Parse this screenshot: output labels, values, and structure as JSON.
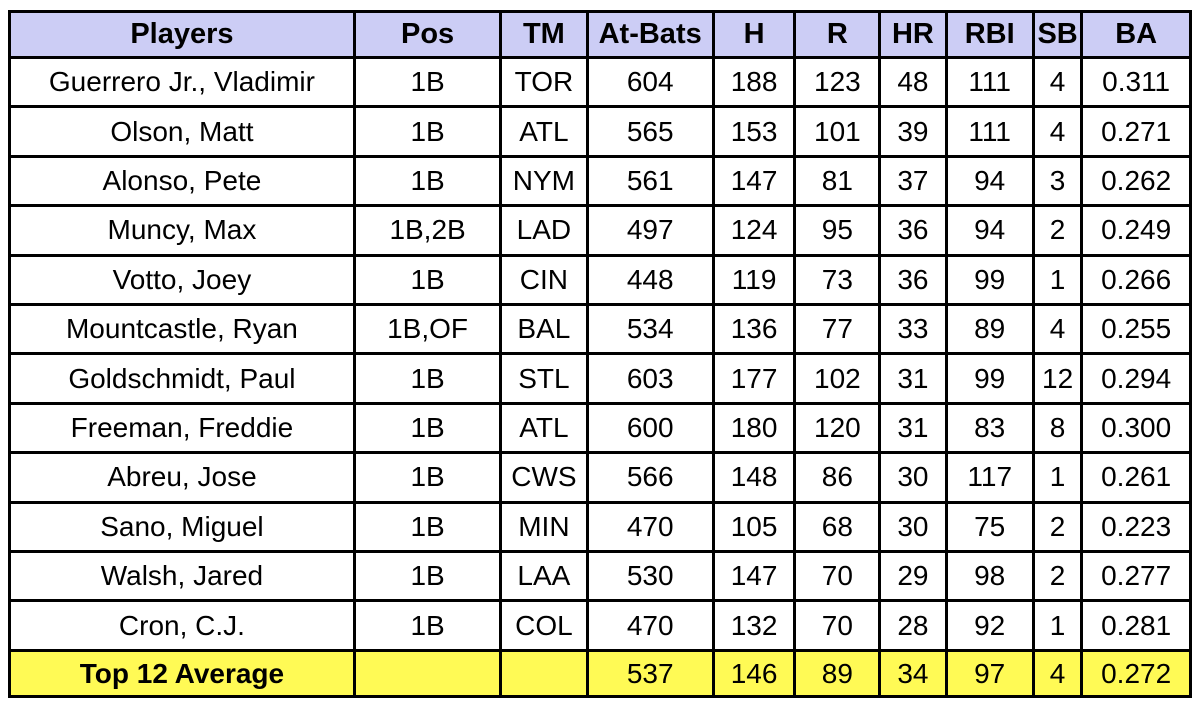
{
  "colors": {
    "header_bg": "#cccdf5",
    "summary_bg": "#fffa55",
    "border": "#000000",
    "text": "#000000",
    "row_bg": "#ffffff"
  },
  "chart_data": {
    "type": "table",
    "title": "",
    "columns": [
      "Players",
      "Pos",
      "TM",
      "At-Bats",
      "H",
      "R",
      "HR",
      "RBI",
      "SB",
      "BA"
    ],
    "rows": [
      [
        "Guerrero Jr., Vladimir",
        "1B",
        "TOR",
        "604",
        "188",
        "123",
        "48",
        "111",
        "4",
        "0.311"
      ],
      [
        "Olson, Matt",
        "1B",
        "ATL",
        "565",
        "153",
        "101",
        "39",
        "111",
        "4",
        "0.271"
      ],
      [
        "Alonso, Pete",
        "1B",
        "NYM",
        "561",
        "147",
        "81",
        "37",
        "94",
        "3",
        "0.262"
      ],
      [
        "Muncy, Max",
        "1B,2B",
        "LAD",
        "497",
        "124",
        "95",
        "36",
        "94",
        "2",
        "0.249"
      ],
      [
        "Votto, Joey",
        "1B",
        "CIN",
        "448",
        "119",
        "73",
        "36",
        "99",
        "1",
        "0.266"
      ],
      [
        "Mountcastle, Ryan",
        "1B,OF",
        "BAL",
        "534",
        "136",
        "77",
        "33",
        "89",
        "4",
        "0.255"
      ],
      [
        "Goldschmidt, Paul",
        "1B",
        "STL",
        "603",
        "177",
        "102",
        "31",
        "99",
        "12",
        "0.294"
      ],
      [
        "Freeman, Freddie",
        "1B",
        "ATL",
        "600",
        "180",
        "120",
        "31",
        "83",
        "8",
        "0.300"
      ],
      [
        "Abreu, Jose",
        "1B",
        "CWS",
        "566",
        "148",
        "86",
        "30",
        "117",
        "1",
        "0.261"
      ],
      [
        "Sano, Miguel",
        "1B",
        "MIN",
        "470",
        "105",
        "68",
        "30",
        "75",
        "2",
        "0.223"
      ],
      [
        "Walsh, Jared",
        "1B",
        "LAA",
        "530",
        "147",
        "70",
        "29",
        "98",
        "2",
        "0.277"
      ],
      [
        "Cron, C.J.",
        "1B",
        "COL",
        "470",
        "132",
        "70",
        "28",
        "92",
        "1",
        "0.281"
      ]
    ],
    "summary_row": [
      "Top 12 Average",
      "",
      "",
      "537",
      "146",
      "89",
      "34",
      "97",
      "4",
      "0.272"
    ]
  }
}
